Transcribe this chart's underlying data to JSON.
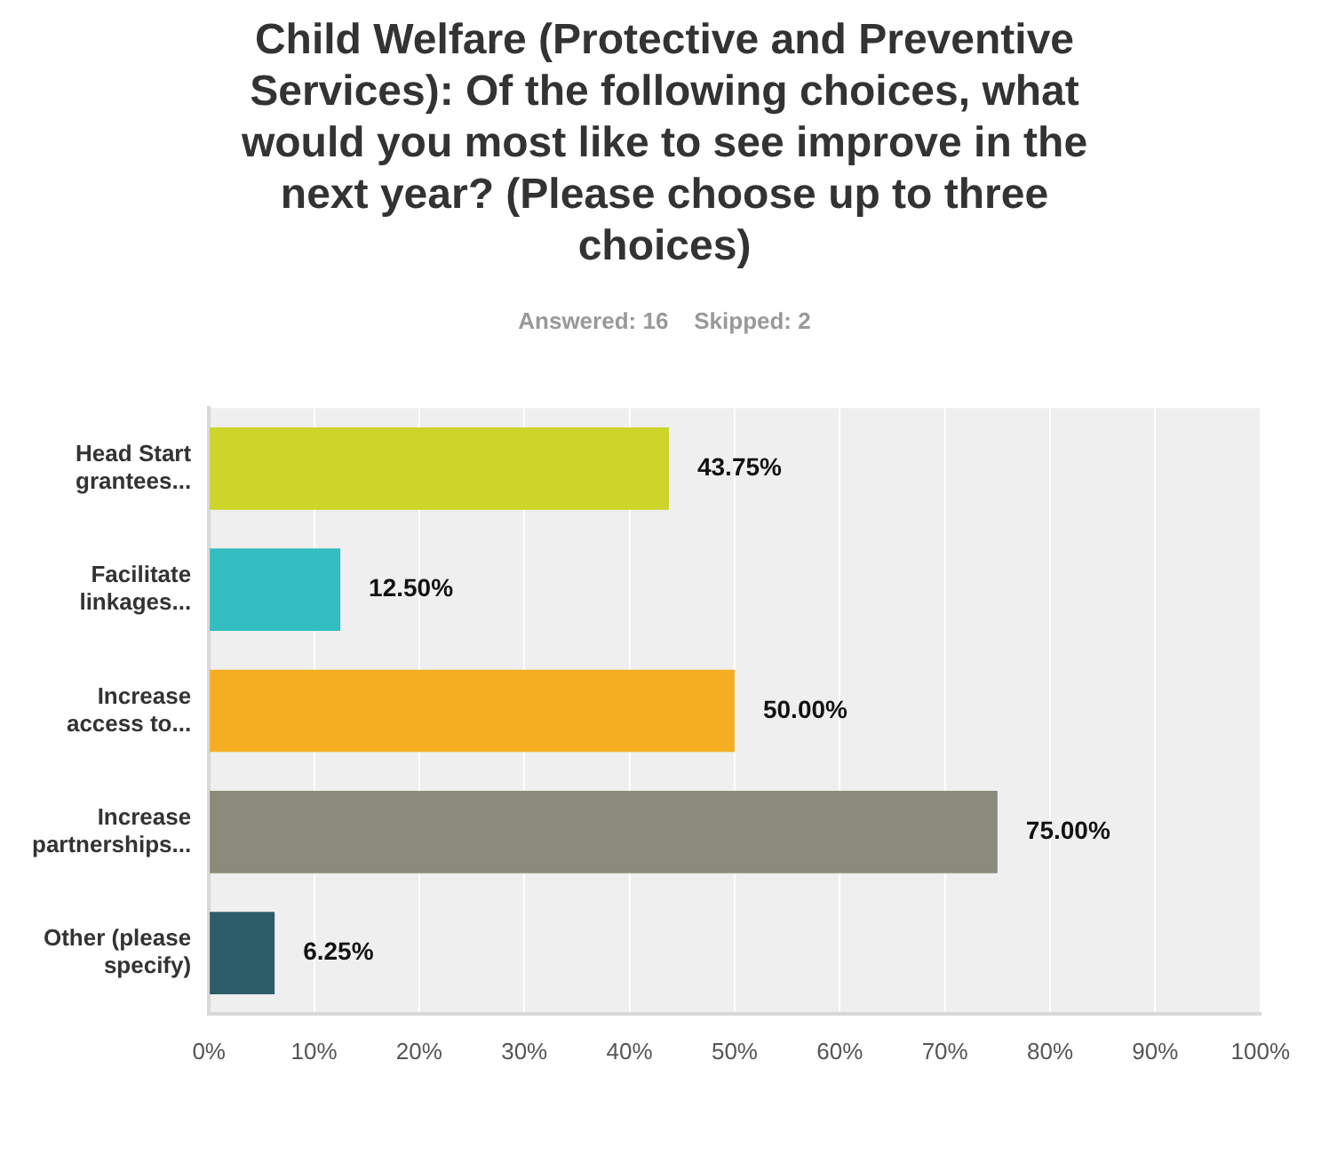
{
  "chart_data": {
    "type": "bar",
    "orientation": "horizontal",
    "title": "Child Welfare (Protective and Preventive Services): Of the following choices, what would you most like to see improve in the next year? (Please choose up to three choices)",
    "subtitle": "Answered: 16    Skipped: 2",
    "categories": [
      "Head Start grantees...",
      "Facilitate linkages...",
      "Increase access to...",
      "Increase partnerships...",
      "Other (please specify)"
    ],
    "values": [
      43.75,
      12.5,
      50,
      75,
      6.25
    ],
    "colors": [
      "#cdd42a",
      "#33bdc0",
      "#f5ae22",
      "#8a8b7a",
      "#2e5d6a"
    ],
    "value_labels": [
      "43.75%",
      "12.50%",
      "50.00%",
      "75.00%",
      "6.25%"
    ],
    "xlim": [
      0,
      100
    ],
    "xticks": [
      {
        "value": 0,
        "label": "0%"
      },
      {
        "value": 10,
        "label": "10%"
      },
      {
        "value": 20,
        "label": "20%"
      },
      {
        "value": 30,
        "label": "30%"
      },
      {
        "value": 40,
        "label": "40%"
      },
      {
        "value": 50,
        "label": "50%"
      },
      {
        "value": 60,
        "label": "60%"
      },
      {
        "value": 70,
        "label": "70%"
      },
      {
        "value": 80,
        "label": "80%"
      },
      {
        "value": 90,
        "label": "90%"
      },
      {
        "value": 100,
        "label": "100%"
      }
    ],
    "grid": "x",
    "legend": false
  }
}
